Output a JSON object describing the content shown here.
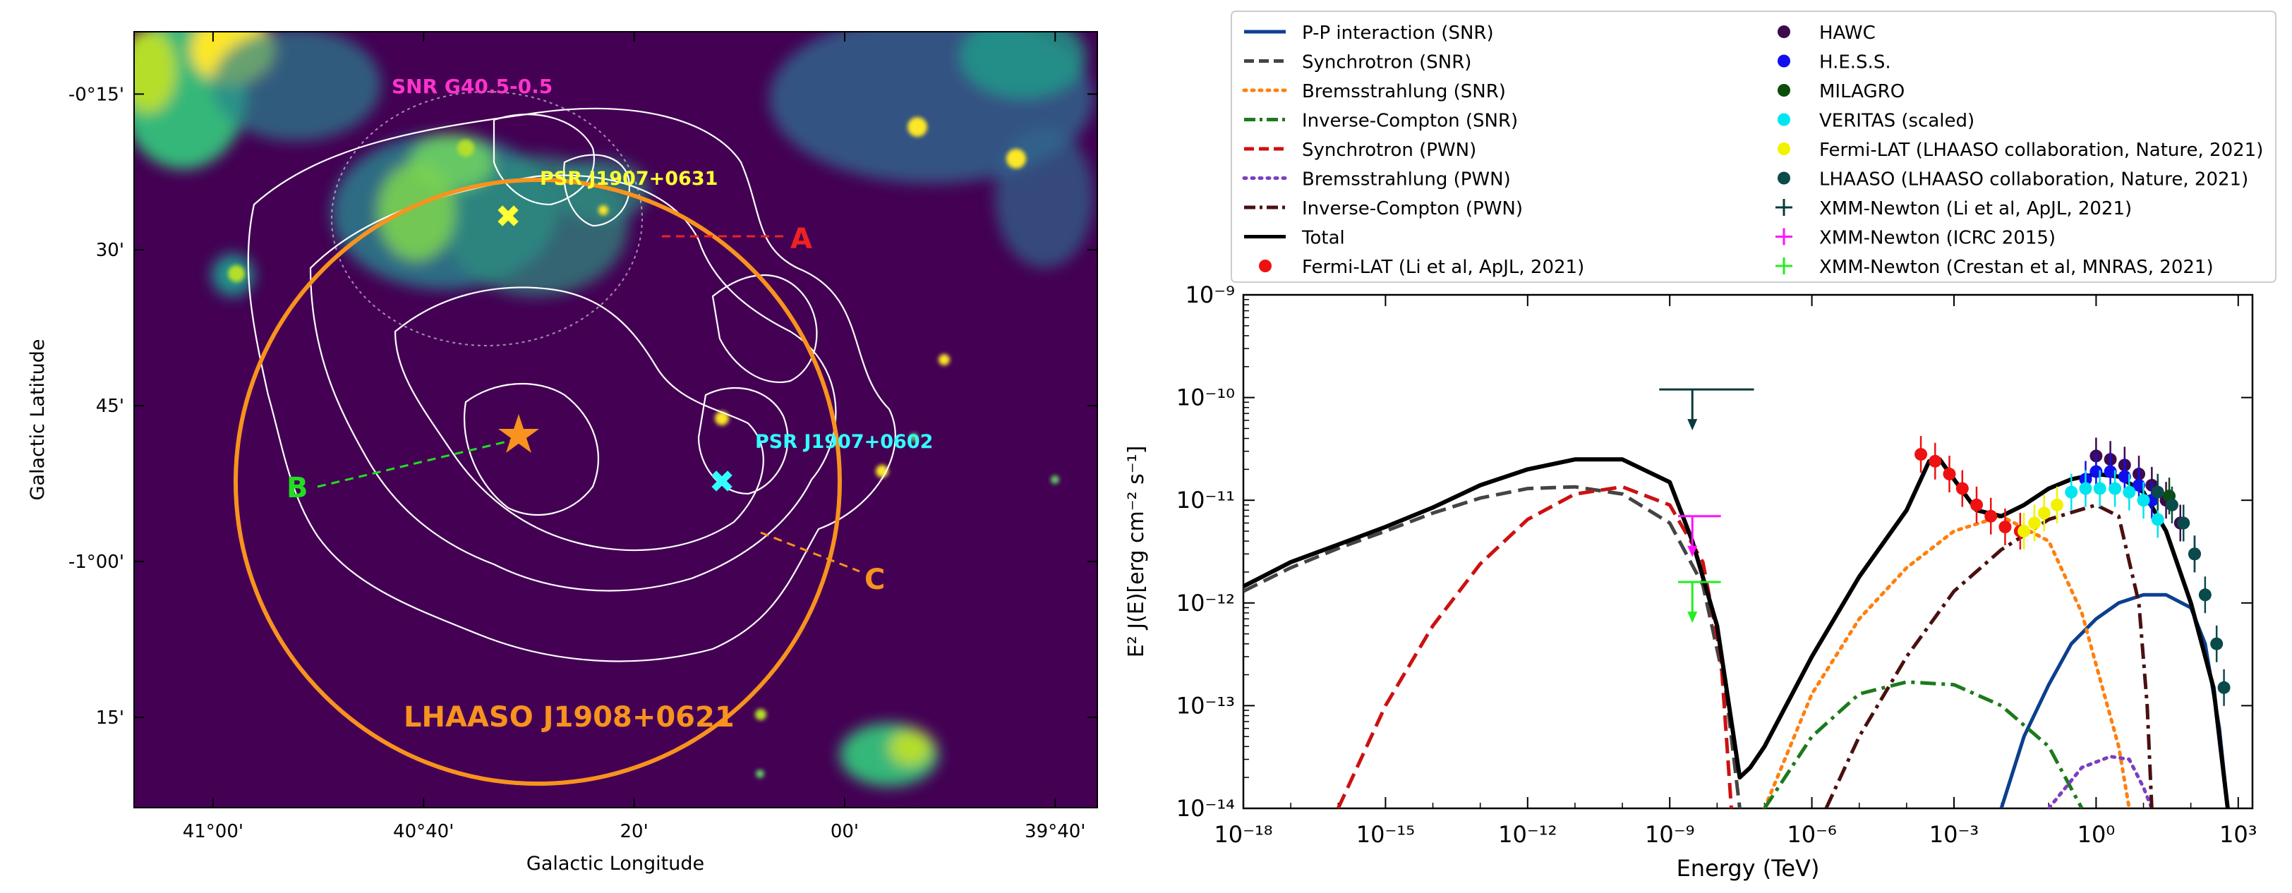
{
  "chart_data": [
    {
      "type": "image-map",
      "xlabel": "Galactic Longitude",
      "ylabel": "Galactic Latitude",
      "xticks": [
        {
          "label": "41°00'",
          "deg": 41.0
        },
        {
          "label": "40°40'",
          "deg": 40.6667
        },
        {
          "label": "20'",
          "deg": 40.3333
        },
        {
          "label": "00'",
          "deg": 40.0
        },
        {
          "label": "39°40'",
          "deg": 39.6667
        }
      ],
      "yticks": [
        {
          "label": "-0°15'",
          "deg": -0.25
        },
        {
          "label": "30'",
          "deg": -0.5
        },
        {
          "label": "45'",
          "deg": -0.75
        },
        {
          "label": "-1°00'",
          "deg": -1.0
        },
        {
          "label": "15'",
          "deg": -1.25
        }
      ],
      "xlim": [
        41.125,
        39.6
      ],
      "ylim": [
        -1.395,
        -0.15
      ],
      "annotations": {
        "snr": "SNR G40.5-0.5",
        "psr1": "PSR J1907+0631",
        "psr2": "PSR J1907+0602",
        "source": "LHAASO J1908+0621",
        "label_a": "A",
        "label_b": "B",
        "label_c": "C"
      },
      "colors": {
        "background": "#440154",
        "snr_text": "#ff33cc",
        "psr1": "#ffff33",
        "psr2": "#33ffff",
        "circle": "#f7931e",
        "line_a": "#ee2222",
        "line_b": "#22dd22",
        "line_c": "#f7931e"
      }
    },
    {
      "type": "line",
      "xscale": "log",
      "yscale": "log",
      "xlim": [
        1e-18,
        2000
      ],
      "ylim": [
        1e-14,
        1e-09
      ],
      "xlabel": "Energy (TeV)",
      "ylabel": "E² J(E)[erg cm⁻² s⁻¹]",
      "xticks": [
        "10⁻¹⁸",
        "10⁻¹⁵",
        "10⁻¹²",
        "10⁻⁹",
        "10⁻⁶",
        "10⁻³",
        "10⁰",
        "10³"
      ],
      "yticks": [
        "10⁻¹⁴",
        "10⁻¹³",
        "10⁻¹²",
        "10⁻¹¹",
        "10⁻¹⁰",
        "10⁻⁹"
      ],
      "legend_position": "top",
      "series": [
        {
          "name": "P-P interaction (SNR)",
          "color": "#0c3f8f",
          "dash": "solid",
          "points": [
            [
              0.01,
              1e-14
            ],
            [
              0.03,
              5e-14
            ],
            [
              0.1,
              1.6e-13
            ],
            [
              0.3,
              4e-13
            ],
            [
              1,
              7e-13
            ],
            [
              3,
              1e-12
            ],
            [
              10,
              1.2e-12
            ],
            [
              30,
              1.2e-12
            ],
            [
              100,
              9e-13
            ],
            [
              200,
              4e-13
            ],
            [
              400,
              6e-14
            ],
            [
              600,
              1e-14
            ]
          ]
        },
        {
          "name": "Synchrotron (SNR)",
          "color": "#444444",
          "dash": "dash",
          "points": [
            [
              1e-18,
              1.3e-12
            ],
            [
              1e-17,
              2.2e-12
            ],
            [
              1e-16,
              3.4e-12
            ],
            [
              1e-15,
              5e-12
            ],
            [
              1e-14,
              7.5e-12
            ],
            [
              1e-13,
              1.05e-11
            ],
            [
              1e-12,
              1.3e-11
            ],
            [
              1e-11,
              1.35e-11
            ],
            [
              1e-10,
              1.15e-11
            ],
            [
              1e-09,
              6e-12
            ],
            [
              5e-09,
              1.5e-12
            ],
            [
              1.5e-08,
              1.5e-13
            ],
            [
              3e-08,
              1e-14
            ]
          ]
        },
        {
          "name": "Bremsstrahlung (SNR)",
          "color": "#ff7f0e",
          "dash": "dot",
          "points": [
            [
              1e-07,
              1e-14
            ],
            [
              1e-06,
              1.3e-13
            ],
            [
              1e-05,
              7e-13
            ],
            [
              0.0001,
              2.2e-12
            ],
            [
              0.001,
              5e-12
            ],
            [
              0.01,
              7e-12
            ],
            [
              0.1,
              4e-12
            ],
            [
              0.5,
              8e-13
            ],
            [
              1,
              2.5e-13
            ],
            [
              3,
              4e-14
            ],
            [
              5,
              1e-14
            ]
          ]
        },
        {
          "name": "Inverse-Compton (SNR)",
          "color": "#1b7a1b",
          "dash": "dashdot",
          "points": [
            [
              1e-07,
              1e-14
            ],
            [
              1e-06,
              5e-14
            ],
            [
              1e-05,
              1.3e-13
            ],
            [
              0.0001,
              1.7e-13
            ],
            [
              0.001,
              1.6e-13
            ],
            [
              0.01,
              1e-13
            ],
            [
              0.1,
              4e-14
            ],
            [
              0.5,
              1e-14
            ]
          ]
        },
        {
          "name": "Synchrotron (PWN)",
          "color": "#cc1111",
          "dash": "dash",
          "points": [
            [
              1e-16,
              1e-14
            ],
            [
              1e-15,
              1e-13
            ],
            [
              1e-14,
              6e-13
            ],
            [
              1e-13,
              2.4e-12
            ],
            [
              1e-12,
              6.5e-12
            ],
            [
              1e-11,
              1.15e-11
            ],
            [
              1e-10,
              1.35e-11
            ],
            [
              1e-09,
              9e-12
            ],
            [
              5e-09,
              2.5e-12
            ],
            [
              1.2e-08,
              3e-13
            ],
            [
              2e-08,
              1e-14
            ]
          ]
        },
        {
          "name": "Bremsstrahlung (PWN)",
          "color": "#7b3fbf",
          "dash": "dot",
          "points": [
            [
              0.1,
              1e-14
            ],
            [
              0.5,
              2.5e-14
            ],
            [
              2,
              3.2e-14
            ],
            [
              5,
              3e-14
            ],
            [
              10,
              1.6e-14
            ],
            [
              15,
              1e-14
            ]
          ]
        },
        {
          "name": "Inverse-Compton (PWN)",
          "color": "#4a1010",
          "dash": "dashdot",
          "points": [
            [
              2e-06,
              1e-14
            ],
            [
              1e-05,
              5e-14
            ],
            [
              0.0001,
              3e-13
            ],
            [
              0.001,
              1.3e-12
            ],
            [
              0.01,
              3.3e-12
            ],
            [
              0.1,
              6.5e-12
            ],
            [
              1,
              9e-12
            ],
            [
              3,
              7e-12
            ],
            [
              8,
              1e-12
            ],
            [
              12,
              1e-13
            ],
            [
              15,
              1e-14
            ]
          ]
        },
        {
          "name": "Total",
          "color": "#000000",
          "dash": "solid",
          "points": [
            [
              1e-18,
              1.45e-12
            ],
            [
              1e-17,
              2.5e-12
            ],
            [
              1e-16,
              3.7e-12
            ],
            [
              1e-15,
              5.5e-12
            ],
            [
              1e-14,
              8.5e-12
            ],
            [
              1e-13,
              1.4e-11
            ],
            [
              1e-12,
              2e-11
            ],
            [
              1e-11,
              2.5e-11
            ],
            [
              1e-10,
              2.5e-11
            ],
            [
              1e-09,
              1.5e-11
            ],
            [
              3e-09,
              4e-12
            ],
            [
              1e-08,
              6e-13
            ],
            [
              3e-08,
              2e-14
            ],
            [
              5e-08,
              2.5e-14
            ],
            [
              1e-07,
              4e-14
            ],
            [
              1e-06,
              3e-13
            ],
            [
              1e-05,
              1.8e-12
            ],
            [
              0.0001,
              8e-12
            ],
            [
              0.0003,
              2.4e-11
            ],
            [
              0.0005,
              2.5e-11
            ],
            [
              0.001,
              1.6e-11
            ],
            [
              0.003,
              8e-12
            ],
            [
              0.01,
              7e-12
            ],
            [
              0.03,
              9e-12
            ],
            [
              0.1,
              1.3e-11
            ],
            [
              0.3,
              1.6e-11
            ],
            [
              1,
              1.8e-11
            ],
            [
              3,
              1.7e-11
            ],
            [
              10,
              1.2e-11
            ],
            [
              30,
              5e-12
            ],
            [
              100,
              1e-12
            ],
            [
              300,
              1.5e-13
            ],
            [
              600,
              1e-14
            ]
          ]
        }
      ],
      "data_series": [
        {
          "name": "Fermi-LAT (Li et al, ApJL, 2021)",
          "color": "#ee1111",
          "marker": "circle",
          "points": [
            [
              0.0002,
              2.8e-11
            ],
            [
              0.0004,
              2.4e-11
            ],
            [
              0.0008,
              1.8e-11
            ],
            [
              0.0015,
              1.3e-11
            ],
            [
              0.003,
              9e-12
            ],
            [
              0.006,
              7e-12
            ],
            [
              0.012,
              5.5e-12
            ],
            [
              0.025,
              5e-12
            ]
          ]
        },
        {
          "name": "Fermi-LAT (LHAASO collaboration, Nature, 2021)",
          "color": "#f2f200",
          "marker": "circle",
          "points": [
            [
              0.03,
              5e-12
            ],
            [
              0.05,
              6e-12
            ],
            [
              0.08,
              7.5e-12
            ],
            [
              0.15,
              9e-12
            ]
          ]
        },
        {
          "name": "HAWC",
          "color": "#3d0a4f",
          "marker": "circle",
          "points": [
            [
              1,
              2.7e-11
            ],
            [
              2,
              2.5e-11
            ],
            [
              4,
              2.2e-11
            ],
            [
              8,
              1.8e-11
            ],
            [
              15,
              1.4e-11
            ],
            [
              30,
              1e-11
            ],
            [
              60,
              6e-12
            ],
            [
              120,
              3e-12
            ]
          ]
        },
        {
          "name": "H.E.S.S.",
          "color": "#1010ee",
          "marker": "circle",
          "points": [
            [
              0.6,
              1.6e-11
            ],
            [
              1,
              1.9e-11
            ],
            [
              2,
              1.9e-11
            ],
            [
              4,
              1.7e-11
            ],
            [
              8,
              1.4e-11
            ],
            [
              15,
              1e-11
            ]
          ]
        },
        {
          "name": "MILAGRO",
          "color": "#0b4d0b",
          "marker": "circle",
          "points": [
            [
              35,
              1.1e-11
            ]
          ]
        },
        {
          "name": "VERITAS (scaled)",
          "color": "#00e5ee",
          "marker": "circle",
          "points": [
            [
              0.3,
              1.2e-11
            ],
            [
              0.6,
              1.3e-11
            ],
            [
              1.2,
              1.3e-11
            ],
            [
              2.5,
              1.3e-11
            ],
            [
              5,
              1.2e-11
            ],
            [
              10,
              1e-11
            ],
            [
              20,
              6.5e-12
            ]
          ]
        },
        {
          "name": "LHAASO (LHAASO collaboration, Nature, 2021)",
          "color": "#0a4a4a",
          "marker": "circle",
          "points": [
            [
              20,
              1.2e-11
            ],
            [
              40,
              9e-12
            ],
            [
              70,
              6e-12
            ],
            [
              120,
              3e-12
            ],
            [
              200,
              1.2e-12
            ],
            [
              350,
              4e-13
            ],
            [
              500,
              1.5e-13
            ]
          ]
        }
      ],
      "upper_limits": [
        {
          "name": "XMM-Newton (Li et al, ApJL, 2021)",
          "color": "#0a3a3a",
          "x": 3e-09,
          "xerr": [
            6e-10,
            6e-08
          ],
          "y": 1.2e-10
        },
        {
          "name": "XMM-Newton (ICRC 2015)",
          "color": "#ff11ff",
          "x": 3e-09,
          "xerr": [
            1.5e-09,
            1.2e-08
          ],
          "y": 7e-12
        },
        {
          "name": "XMM-Newton (Crestan et al, MNRAS, 2021)",
          "color": "#22ee22",
          "x": 3e-09,
          "xerr": [
            1.5e-09,
            1.2e-08
          ],
          "y": 1.6e-12
        }
      ]
    }
  ]
}
